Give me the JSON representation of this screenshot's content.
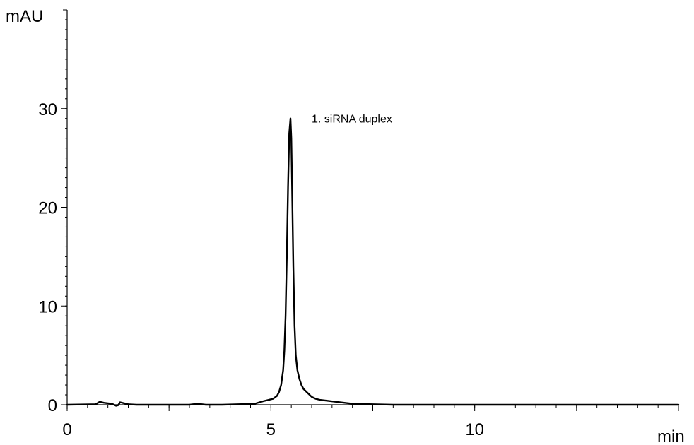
{
  "chart_data": {
    "type": "line",
    "title": "",
    "xlabel": "min",
    "ylabel": "mAU",
    "xlim": [
      0,
      15
    ],
    "ylim": [
      0,
      40
    ],
    "x_ticks": [
      0,
      5,
      10
    ],
    "y_ticks": [
      0,
      10,
      20,
      30
    ],
    "x_minor_step": 0.5,
    "y_minor_step": 1,
    "grid": false,
    "legend": "none",
    "annotations": [
      {
        "text": "1. siRNA duplex",
        "x": 6.0,
        "y": 28.6
      }
    ],
    "series": [
      {
        "x": [
          0.0,
          0.7,
          0.8,
          0.9,
          1.0,
          1.1,
          1.2,
          1.25,
          1.3,
          1.4,
          1.5,
          1.7,
          2.0,
          2.5,
          3.0,
          3.2,
          3.4,
          3.8,
          4.2,
          4.6,
          4.8,
          4.95,
          5.05,
          5.15,
          5.2,
          5.25,
          5.3,
          5.33,
          5.36,
          5.39,
          5.42,
          5.45,
          5.48,
          5.5,
          5.52,
          5.55,
          5.58,
          5.61,
          5.65,
          5.7,
          5.75,
          5.8,
          5.9,
          6.0,
          6.1,
          6.2,
          6.4,
          6.6,
          6.8,
          7.0,
          7.5,
          8.0,
          9.0,
          10.0,
          11.0,
          12.0,
          13.0,
          14.0,
          15.0
        ],
        "values": [
          0.0,
          0.05,
          0.3,
          0.2,
          0.15,
          0.1,
          -0.1,
          -0.05,
          0.25,
          0.15,
          0.05,
          0.0,
          0.0,
          0.0,
          0.0,
          0.1,
          0.0,
          0.0,
          0.05,
          0.1,
          0.35,
          0.5,
          0.6,
          0.9,
          1.3,
          2.0,
          3.5,
          5.5,
          9.0,
          15.0,
          22.0,
          27.5,
          29.0,
          27.0,
          22.0,
          14.0,
          8.0,
          5.0,
          3.5,
          2.6,
          2.0,
          1.6,
          1.2,
          0.8,
          0.6,
          0.5,
          0.4,
          0.3,
          0.2,
          0.1,
          0.05,
          0.0,
          0.0,
          0.0,
          0.0,
          0.0,
          0.0,
          0.0,
          0.0
        ]
      }
    ]
  }
}
